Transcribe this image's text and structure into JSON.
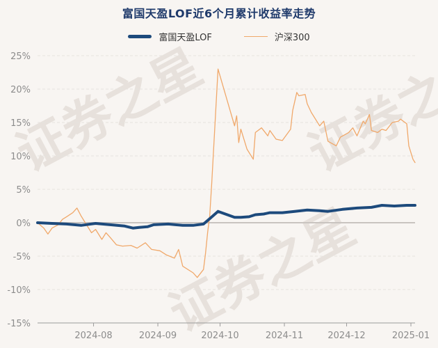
{
  "chart_data": {
    "type": "line",
    "title": "富国天盈LOF近6个月累计收益率走势",
    "legend_position": "top-center",
    "grid": true,
    "ylim": [
      -15,
      25
    ],
    "yticks": [
      "25%",
      "20%",
      "15%",
      "10%",
      "5%",
      "0%",
      "-5%",
      "-10%",
      "-15%"
    ],
    "xticks": [
      "2024-08",
      "2024-09",
      "2024-10",
      "2024-11",
      "2024-12",
      "2025-01"
    ],
    "xlim": [
      "2024-07-05",
      "2025-01-03"
    ],
    "series": [
      {
        "name": "富国天盈LOF",
        "color": "#1d4a7c",
        "points": [
          [
            "2024-07-05",
            0.0
          ],
          [
            "2024-07-12",
            -0.1
          ],
          [
            "2024-07-19",
            -0.2
          ],
          [
            "2024-07-26",
            -0.4
          ],
          [
            "2024-08-02",
            -0.1
          ],
          [
            "2024-08-09",
            -0.3
          ],
          [
            "2024-08-16",
            -0.5
          ],
          [
            "2024-08-20",
            -0.8
          ],
          [
            "2024-08-23",
            -0.7
          ],
          [
            "2024-08-27",
            -0.6
          ],
          [
            "2024-08-30",
            -0.3
          ],
          [
            "2024-09-06",
            -0.2
          ],
          [
            "2024-09-13",
            -0.4
          ],
          [
            "2024-09-18",
            -0.4
          ],
          [
            "2024-09-23",
            -0.2
          ],
          [
            "2024-09-26",
            0.6
          ],
          [
            "2024-09-30",
            1.7
          ],
          [
            "2024-10-08",
            0.8
          ],
          [
            "2024-10-11",
            0.8
          ],
          [
            "2024-10-15",
            0.9
          ],
          [
            "2024-10-18",
            1.2
          ],
          [
            "2024-10-22",
            1.3
          ],
          [
            "2024-10-25",
            1.5
          ],
          [
            "2024-10-31",
            1.5
          ],
          [
            "2024-11-06",
            1.7
          ],
          [
            "2024-11-12",
            1.9
          ],
          [
            "2024-11-18",
            1.8
          ],
          [
            "2024-11-22",
            1.7
          ],
          [
            "2024-11-29",
            2.0
          ],
          [
            "2024-12-06",
            2.2
          ],
          [
            "2024-12-13",
            2.3
          ],
          [
            "2024-12-18",
            2.6
          ],
          [
            "2024-12-24",
            2.5
          ],
          [
            "2024-12-30",
            2.6
          ],
          [
            "2025-01-03",
            2.6
          ]
        ]
      },
      {
        "name": "沪深300",
        "color": "#f0a86a",
        "points": [
          [
            "2024-07-05",
            0.0
          ],
          [
            "2024-07-08",
            -0.8
          ],
          [
            "2024-07-10",
            -1.7
          ],
          [
            "2024-07-12",
            -0.8
          ],
          [
            "2024-07-15",
            -0.3
          ],
          [
            "2024-07-17",
            0.5
          ],
          [
            "2024-07-19",
            0.9
          ],
          [
            "2024-07-22",
            1.5
          ],
          [
            "2024-07-24",
            2.2
          ],
          [
            "2024-07-26",
            1.0
          ],
          [
            "2024-07-29",
            -0.5
          ],
          [
            "2024-07-31",
            -1.5
          ],
          [
            "2024-08-02",
            -1.0
          ],
          [
            "2024-08-05",
            -2.5
          ],
          [
            "2024-08-07",
            -1.5
          ],
          [
            "2024-08-09",
            -2.2
          ],
          [
            "2024-08-12",
            -3.3
          ],
          [
            "2024-08-15",
            -3.5
          ],
          [
            "2024-08-19",
            -3.4
          ],
          [
            "2024-08-22",
            -3.8
          ],
          [
            "2024-08-26",
            -3.0
          ],
          [
            "2024-08-29",
            -4.0
          ],
          [
            "2024-09-02",
            -4.2
          ],
          [
            "2024-09-05",
            -4.8
          ],
          [
            "2024-09-09",
            -5.3
          ],
          [
            "2024-09-11",
            -4.0
          ],
          [
            "2024-09-13",
            -6.5
          ],
          [
            "2024-09-18",
            -7.5
          ],
          [
            "2024-09-20",
            -8.2
          ],
          [
            "2024-09-23",
            -7.0
          ],
          [
            "2024-09-24",
            -4.5
          ],
          [
            "2024-09-25",
            -1.5
          ],
          [
            "2024-09-26",
            1.0
          ],
          [
            "2024-09-27",
            6.0
          ],
          [
            "2024-09-30",
            23.0
          ],
          [
            "2024-10-08",
            14.5
          ],
          [
            "2024-10-09",
            16.0
          ],
          [
            "2024-10-10",
            12.0
          ],
          [
            "2024-10-11",
            14.0
          ],
          [
            "2024-10-14",
            11.0
          ],
          [
            "2024-10-17",
            9.5
          ],
          [
            "2024-10-18",
            13.5
          ],
          [
            "2024-10-21",
            14.2
          ],
          [
            "2024-10-24",
            13.0
          ],
          [
            "2024-10-25",
            13.8
          ],
          [
            "2024-10-28",
            12.5
          ],
          [
            "2024-10-31",
            12.3
          ],
          [
            "2024-11-04",
            14.0
          ],
          [
            "2024-11-05",
            16.8
          ],
          [
            "2024-11-07",
            19.5
          ],
          [
            "2024-11-08",
            19.0
          ],
          [
            "2024-11-11",
            19.2
          ],
          [
            "2024-11-12",
            17.8
          ],
          [
            "2024-11-14",
            16.5
          ],
          [
            "2024-11-18",
            14.5
          ],
          [
            "2024-11-20",
            15.2
          ],
          [
            "2024-11-22",
            12.2
          ],
          [
            "2024-11-26",
            11.5
          ],
          [
            "2024-11-28",
            12.8
          ],
          [
            "2024-12-02",
            13.5
          ],
          [
            "2024-12-04",
            14.2
          ],
          [
            "2024-12-06",
            13.0
          ],
          [
            "2024-12-09",
            15.2
          ],
          [
            "2024-12-10",
            14.8
          ],
          [
            "2024-12-12",
            16.2
          ],
          [
            "2024-12-13",
            13.8
          ],
          [
            "2024-12-16",
            13.5
          ],
          [
            "2024-12-18",
            14.0
          ],
          [
            "2024-12-20",
            13.8
          ],
          [
            "2024-12-23",
            15.0
          ],
          [
            "2024-12-26",
            15.2
          ],
          [
            "2024-12-27",
            15.5
          ],
          [
            "2024-12-30",
            14.8
          ],
          [
            "2024-12-31",
            11.5
          ],
          [
            "2025-01-02",
            9.5
          ],
          [
            "2025-01-03",
            9.0
          ]
        ]
      }
    ]
  },
  "watermark": "证券之星"
}
